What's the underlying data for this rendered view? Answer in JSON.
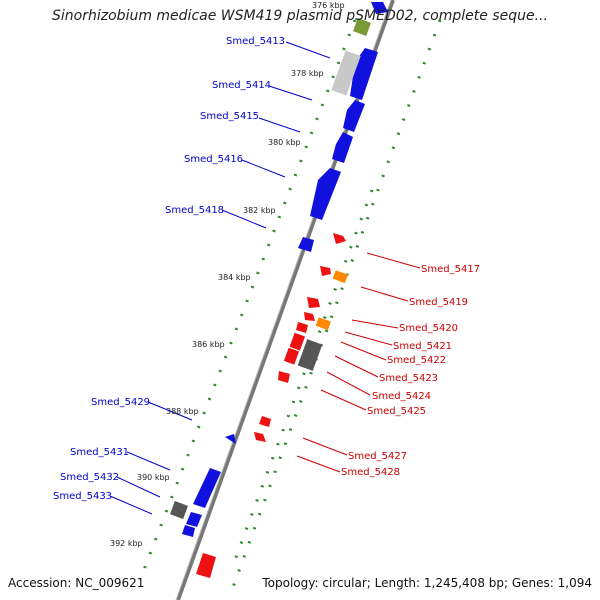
{
  "title": "Sinorhizobium medicae WSM419 plasmid pSMED02, complete seque...",
  "footer": {
    "accession": "Accession: NC_009621",
    "summary": "Topology: circular; Length: 1,245,408 bp; Genes: 1,094"
  },
  "colors": {
    "forward": "#1111dd",
    "reverse": "#ee1111",
    "gene_other": "#ff8800",
    "grey": "#555555",
    "dots": "#2a8a2a",
    "backbone": "#777777",
    "label_fwd": "#0000cc",
    "label_rev": "#cc0000"
  },
  "ticks": [
    "376 kbp",
    "378 kbp",
    "380 kbp",
    "382 kbp",
    "384 kbp",
    "386 kbp",
    "388 kbp",
    "390 kbp",
    "392 kbp"
  ],
  "labels_left": [
    "Smed_5413",
    "Smed_5414",
    "Smed_5415",
    "Smed_5416",
    "Smed_5418",
    "Smed_5429",
    "Smed_5431",
    "Smed_5432",
    "Smed_5433"
  ],
  "labels_right": [
    "Smed_5417",
    "Smed_5419",
    "Smed_5420",
    "Smed_5421",
    "Smed_5422",
    "Smed_5423",
    "Smed_5424",
    "Smed_5425",
    "Smed_5427",
    "Smed_5428"
  ]
}
